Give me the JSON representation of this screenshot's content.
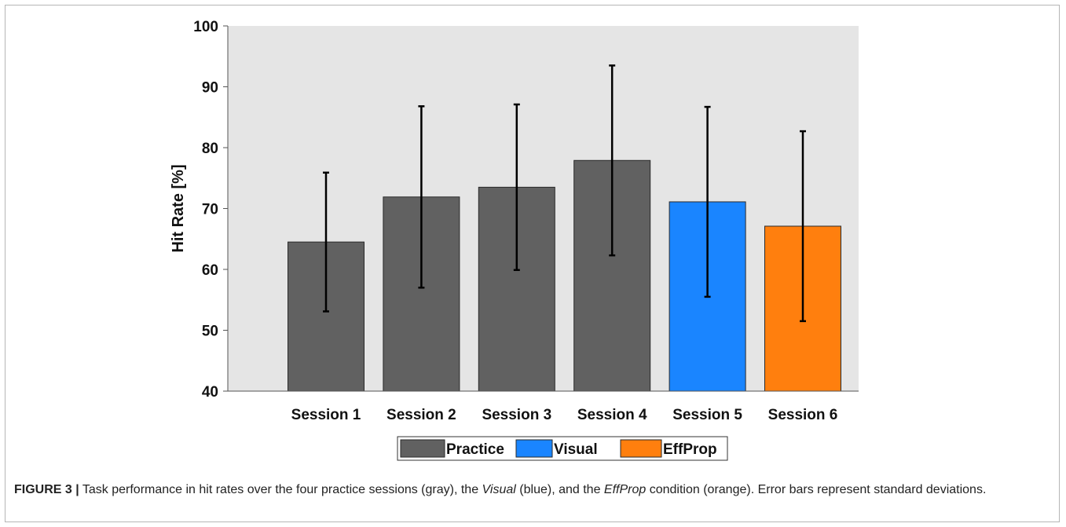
{
  "chart_data": {
    "type": "bar",
    "categories": [
      "Session 1",
      "Session 2",
      "Session 3",
      "Session 4",
      "Session 5",
      "Session 6"
    ],
    "values": [
      64.5,
      71.9,
      73.5,
      77.9,
      71.1,
      67.1
    ],
    "error": [
      11.4,
      14.9,
      13.6,
      15.6,
      15.6,
      15.6
    ],
    "groups": [
      "Practice",
      "Practice",
      "Practice",
      "Practice",
      "Visual",
      "EffProp"
    ],
    "ylabel": "Hit Rate [%]",
    "xlabel": "",
    "ylim": [
      40,
      100
    ],
    "yticks": [
      40,
      50,
      60,
      70,
      80,
      90,
      100
    ],
    "legend": {
      "placement": "bottom",
      "entries": [
        {
          "name": "Practice",
          "color": "#616161"
        },
        {
          "name": "Visual",
          "color": "#1a85ff"
        },
        {
          "name": "EffProp",
          "color": "#ff7f0e"
        }
      ]
    },
    "background": "#e5e5e5",
    "grid": false
  },
  "caption": {
    "label": "FIGURE 3 |",
    "text_before_visual": " Task performance in hit rates over the four practice sessions (gray), the ",
    "visual": "Visual",
    "text_mid": " (blue), and the ",
    "effprop": "EffProp",
    "text_after": " condition (orange). Error bars represent standard deviations."
  }
}
